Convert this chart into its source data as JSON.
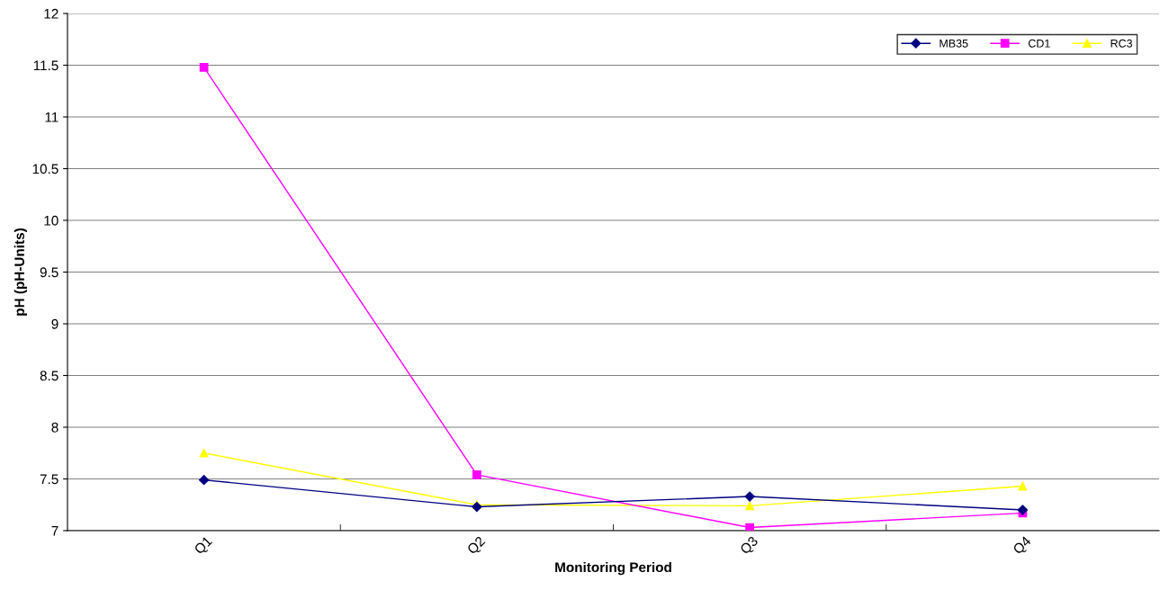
{
  "chart_data": {
    "type": "line",
    "xlabel": "Monitoring Period",
    "ylabel": "pH (pH-Units)",
    "categories": [
      "Q1",
      "Q2",
      "Q3",
      "Q4"
    ],
    "series": [
      {
        "name": "MB35",
        "color": "#000080",
        "marker": "diamond",
        "values": [
          7.49,
          7.23,
          7.33,
          7.2
        ]
      },
      {
        "name": "CD1",
        "color": "#ff00ff",
        "marker": "square",
        "values": [
          11.48,
          7.54,
          7.03,
          7.17
        ]
      },
      {
        "name": "RC3",
        "color": "#ffff00",
        "marker": "triangle",
        "values": [
          7.75,
          7.25,
          7.24,
          7.43
        ]
      }
    ],
    "ylim": [
      7,
      12
    ],
    "yticks": [
      7,
      7.5,
      8,
      8.5,
      9,
      9.5,
      10,
      10.5,
      11,
      11.5,
      12
    ],
    "grid": "y",
    "legend": "top right",
    "line_style": "solid"
  }
}
